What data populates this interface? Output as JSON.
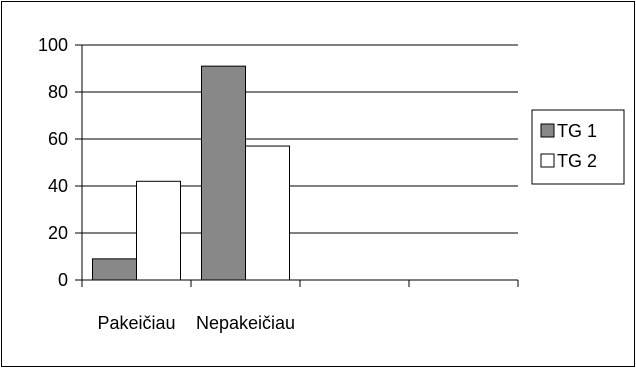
{
  "chart_data": {
    "type": "bar",
    "categories": [
      "Pakeičiau",
      "Nepakeičiau",
      "",
      ""
    ],
    "series": [
      {
        "name": "TG 1",
        "values": [
          9,
          91,
          null,
          null
        ],
        "color": "#888888"
      },
      {
        "name": "TG 2",
        "values": [
          42,
          57,
          null,
          null
        ],
        "color": "#ffffff"
      }
    ],
    "ylim": [
      0,
      100
    ],
    "yticks": [
      "0",
      "20",
      "40",
      "60",
      "80",
      "100"
    ],
    "grid": true,
    "legend": "right"
  }
}
